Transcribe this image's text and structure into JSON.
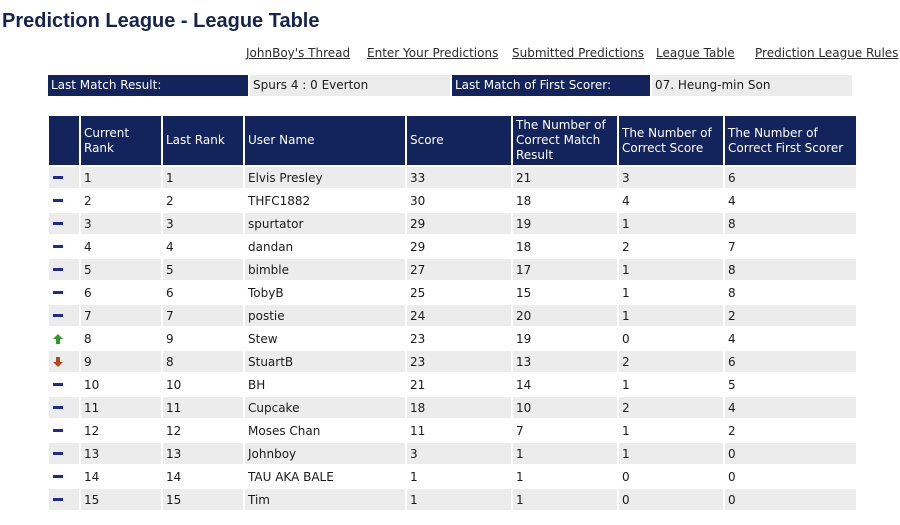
{
  "page": {
    "title": "Prediction League - League Table"
  },
  "nav": {
    "links": [
      "JohnBoy's Thread",
      "Enter Your Predictions",
      "Submitted Predictions",
      "League Table",
      "Prediction League Rules"
    ]
  },
  "info": {
    "last_result_label": "Last Match Result:",
    "last_result_value": "Spurs 4 : 0 Everton",
    "first_scorer_label": "Last Match of First Scorer:",
    "first_scorer_value": "07. Heung-min Son"
  },
  "table": {
    "headers": [
      "",
      "Current Rank",
      "Last Rank",
      "User Name",
      "Score",
      "The Number of Correct Match Result",
      "The Number of Correct Score",
      "The Number of Correct First Scorer"
    ],
    "movement_icons": {
      "same": "no-change-dash-icon",
      "up": "up-arrow-icon",
      "down": "down-arrow-icon"
    },
    "movement_colors": {
      "same": "#1c2a9c",
      "up": "#2c9a2c",
      "down": "#b3481c"
    },
    "rows": [
      {
        "move": "same",
        "cells": [
          "1",
          "1",
          "Elvis Presley",
          "33",
          "21",
          "3",
          "6"
        ]
      },
      {
        "move": "same",
        "cells": [
          "2",
          "2",
          "THFC1882",
          "30",
          "18",
          "4",
          "4"
        ]
      },
      {
        "move": "same",
        "cells": [
          "3",
          "3",
          "spurtator",
          "29",
          "19",
          "1",
          "8"
        ]
      },
      {
        "move": "same",
        "cells": [
          "4",
          "4",
          "dandan",
          "29",
          "18",
          "2",
          "7"
        ]
      },
      {
        "move": "same",
        "cells": [
          "5",
          "5",
          "bimble",
          "27",
          "17",
          "1",
          "8"
        ]
      },
      {
        "move": "same",
        "cells": [
          "6",
          "6",
          "TobyB",
          "25",
          "15",
          "1",
          "8"
        ]
      },
      {
        "move": "same",
        "cells": [
          "7",
          "7",
          "postie",
          "24",
          "20",
          "1",
          "2"
        ]
      },
      {
        "move": "up",
        "cells": [
          "8",
          "9",
          "Stew",
          "23",
          "19",
          "0",
          "4"
        ]
      },
      {
        "move": "down",
        "cells": [
          "9",
          "8",
          "StuartB",
          "23",
          "13",
          "2",
          "6"
        ]
      },
      {
        "move": "same",
        "cells": [
          "10",
          "10",
          "BH",
          "21",
          "14",
          "1",
          "5"
        ]
      },
      {
        "move": "same",
        "cells": [
          "11",
          "11",
          "Cupcake",
          "18",
          "10",
          "2",
          "4"
        ]
      },
      {
        "move": "same",
        "cells": [
          "12",
          "12",
          "Moses Chan",
          "11",
          "7",
          "1",
          "2"
        ]
      },
      {
        "move": "same",
        "cells": [
          "13",
          "13",
          "Johnboy",
          "3",
          "1",
          "1",
          "0"
        ]
      },
      {
        "move": "same",
        "cells": [
          "14",
          "14",
          "TAU AKA BALE",
          "1",
          "1",
          "0",
          "0"
        ]
      },
      {
        "move": "same",
        "cells": [
          "15",
          "15",
          "Tim",
          "1",
          "1",
          "0",
          "0"
        ]
      }
    ]
  },
  "colors": {
    "header_bg": "#13235b",
    "title": "#14234f",
    "row_alt_bg": "#ececec"
  }
}
